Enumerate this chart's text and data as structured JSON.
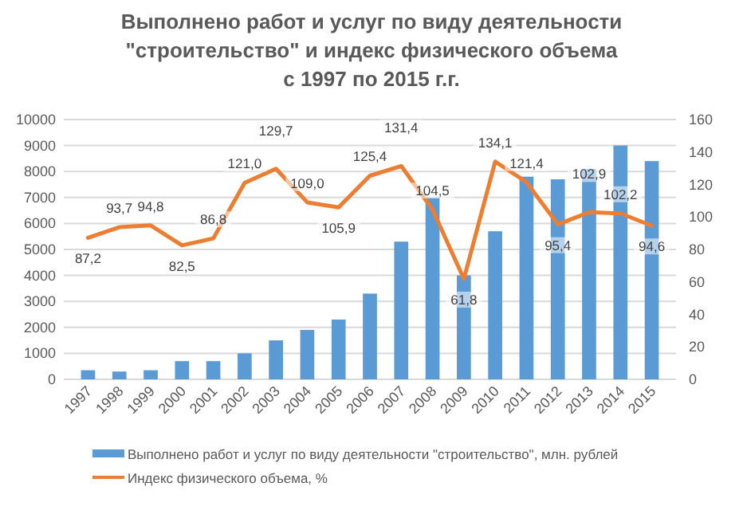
{
  "chart_data": {
    "type": "bar",
    "title": "Выполнено работ и услуг по виду деятельности\n\"строительство\" и индекс физического объема\nс 1997 по 2015 г.г.",
    "categories": [
      "1997",
      "1998",
      "1999",
      "2000",
      "2001",
      "2002",
      "2003",
      "2004",
      "2005",
      "2006",
      "2007",
      "2008",
      "2009",
      "2010",
      "2011",
      "2012",
      "2013",
      "2014",
      "2015"
    ],
    "series": [
      {
        "name": "Выполнено работ и услуг по  виду деятельности \"строительство\",  млн. рублей",
        "type": "bar",
        "color": "#5b9bd5",
        "values": [
          350,
          300,
          350,
          700,
          700,
          1000,
          1500,
          1900,
          2300,
          3300,
          5300,
          7000,
          4000,
          5700,
          7800,
          7700,
          8100,
          9000,
          8400
        ]
      },
      {
        "name": "Индекс физического объема, %",
        "type": "line",
        "axis": "y2",
        "color": "#ed7d31",
        "values": [
          87.2,
          93.7,
          94.8,
          82.5,
          86.8,
          121.0,
          129.7,
          109.0,
          105.9,
          125.4,
          131.4,
          104.5,
          61.8,
          134.1,
          121.4,
          95.4,
          102.9,
          102.2,
          94.6
        ],
        "value_labels": [
          "87,2",
          "93,7",
          "94,8",
          "82,5",
          "86,8",
          "121,0",
          "129,7",
          "109,0",
          "105,9",
          "125,4",
          "131,4",
          "104,5",
          "61,8",
          "134,1",
          "121,4",
          "95,4",
          "102,9",
          "102,2",
          "94,6"
        ]
      }
    ],
    "ylim": [
      0,
      10000
    ],
    "yticks": [
      0,
      1000,
      2000,
      3000,
      4000,
      5000,
      6000,
      7000,
      8000,
      9000,
      10000
    ],
    "y2lim": [
      0,
      160
    ],
    "y2ticks": [
      0,
      20,
      40,
      60,
      80,
      100,
      120,
      140,
      160
    ],
    "grid": "y",
    "legend": "bottom"
  }
}
